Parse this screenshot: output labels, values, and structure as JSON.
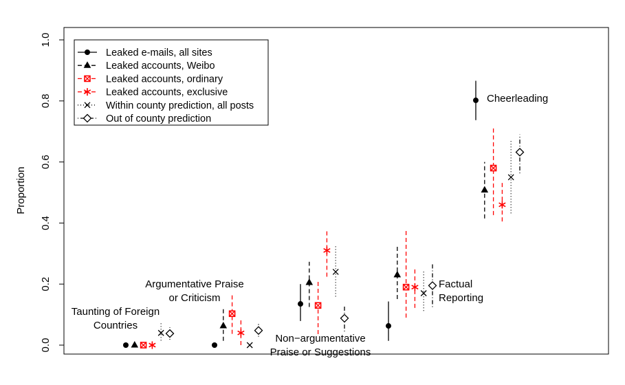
{
  "chart_data": {
    "type": "scatter",
    "title": "",
    "xlabel": "",
    "ylabel": "Proportion",
    "ylim": [
      0,
      1
    ],
    "yticks": [
      0.0,
      0.2,
      0.4,
      0.6,
      0.8,
      1.0
    ],
    "ytick_labels": [
      "0.0",
      "0.2",
      "0.4",
      "0.6",
      "0.8",
      "1.0"
    ],
    "categories": [
      "Taunting of Foreign Countries",
      "Argumentative Praise or Criticism",
      "Non-argumentative Praise or Suggestions",
      "Factual Reporting",
      "Cheerleading"
    ],
    "legend_position": "top-left",
    "series": [
      {
        "name": "Leaked e-mails, all sites",
        "marker": "dot",
        "color": "#000000",
        "line": "solid",
        "values": [
          0.0,
          0.0,
          0.135,
          0.063,
          0.802
        ],
        "lower": [
          null,
          null,
          0.079,
          0.014,
          0.737
        ],
        "upper": [
          null,
          null,
          0.2,
          0.143,
          0.866
        ]
      },
      {
        "name": "Leaked accounts, Weibo",
        "marker": "triangle",
        "color": "#000000",
        "line": "dashed",
        "values": [
          0.0,
          0.063,
          0.205,
          0.23,
          0.508
        ],
        "lower": [
          null,
          0.014,
          0.125,
          0.151,
          0.415
        ],
        "upper": [
          null,
          0.12,
          0.273,
          0.33,
          0.6
        ]
      },
      {
        "name": "Leaked accounts, ordinary",
        "marker": "boxed-x",
        "color": "#ff0000",
        "line": "dashed",
        "values": [
          0.0,
          0.103,
          0.13,
          0.19,
          0.58
        ],
        "lower": [
          null,
          0.037,
          0.036,
          0.09,
          0.426
        ],
        "upper": [
          null,
          0.165,
          0.213,
          0.378,
          0.715
        ]
      },
      {
        "name": "Leaked accounts, exclusive",
        "marker": "asterisk",
        "color": "#ff0000",
        "line": "dashed",
        "values": [
          0.0,
          0.04,
          0.31,
          0.19,
          0.46
        ],
        "lower": [
          null,
          0.0,
          0.224,
          0.122,
          0.405
        ],
        "upper": [
          null,
          0.087,
          0.38,
          0.254,
          0.535
        ]
      },
      {
        "name": "Within county prediction, all posts",
        "marker": "x",
        "color": "#000000",
        "line": "dotted",
        "values": [
          0.04,
          0.0,
          0.24,
          0.17,
          0.55
        ],
        "lower": [
          0.015,
          null,
          0.159,
          0.112,
          0.432
        ],
        "upper": [
          0.073,
          null,
          0.33,
          0.245,
          0.67
        ]
      },
      {
        "name": "Out of county prediction",
        "marker": "diamond",
        "color": "#000000",
        "line": "dotdash",
        "values": [
          0.038,
          0.048,
          0.088,
          0.195,
          0.632
        ],
        "lower": [
          0.018,
          0.028,
          0.045,
          0.125,
          0.563
        ],
        "upper": [
          0.058,
          0.069,
          0.133,
          0.268,
          0.69
        ]
      }
    ],
    "annotations": [
      {
        "category": 0,
        "lines": [
          "Taunting of Foreign",
          "Countries"
        ]
      },
      {
        "category": 1,
        "lines": [
          "Argumentative Praise",
          "or Criticism"
        ]
      },
      {
        "category": 2,
        "lines": [
          "Non−argumentative",
          "Praise or Suggestions"
        ]
      },
      {
        "category": 3,
        "lines": [
          "Factual",
          "Reporting"
        ]
      },
      {
        "category": 4,
        "lines": [
          "Cheerleading"
        ]
      }
    ]
  }
}
